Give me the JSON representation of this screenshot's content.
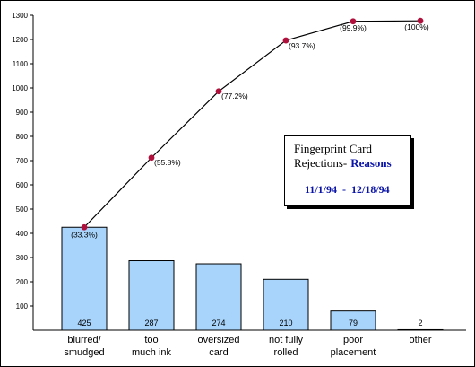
{
  "chart_data": {
    "type": "bar",
    "title_lines": [
      "Fingerprint Card",
      "Rejections-"
    ],
    "title_highlight": "Reasons",
    "subtitle": "11/1/94  -  12/18/94",
    "categories": [
      [
        "blurred/",
        "smudged"
      ],
      [
        "too",
        "much ink"
      ],
      [
        "oversized",
        "card"
      ],
      [
        "not fully",
        "rolled"
      ],
      [
        "poor",
        "placement"
      ],
      [
        "other"
      ]
    ],
    "values": [
      425,
      287,
      274,
      210,
      79,
      2
    ],
    "value_labels": [
      "425",
      "287",
      "274",
      "210",
      "79",
      "2"
    ],
    "cumulative": {
      "type": "line",
      "values": [
        425,
        712,
        986,
        1196,
        1275,
        1277
      ],
      "labels": [
        "(33.3%)",
        "(55.8%)",
        "(77.2%)",
        "(93.7%)",
        "(99.9%)",
        "(100%)"
      ]
    },
    "ylim": [
      0,
      1300
    ],
    "yticks": [
      100,
      200,
      300,
      400,
      500,
      600,
      700,
      800,
      900,
      1000,
      1100,
      1200,
      1300
    ],
    "grid": false,
    "colors": {
      "bar_fill": "#a8d4fb",
      "bar_stroke": "#000000",
      "line": "#000000",
      "marker": "#b0103c",
      "highlight_text": "#0b14a8"
    }
  }
}
